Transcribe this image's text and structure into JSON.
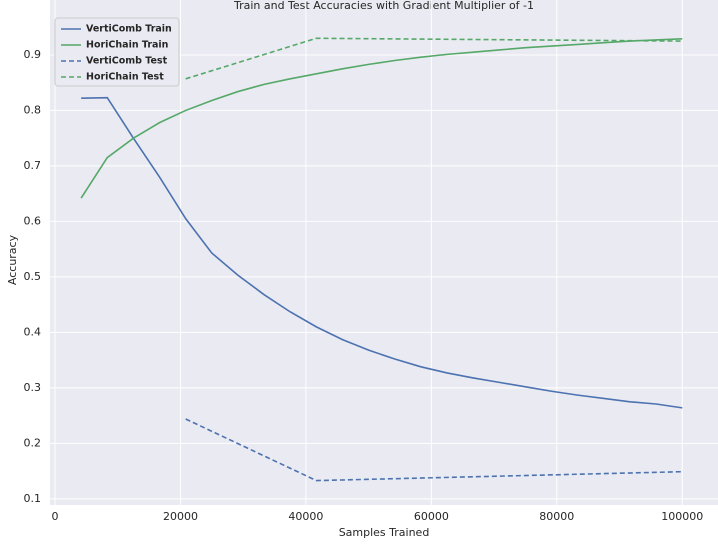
{
  "chart_data": {
    "type": "line",
    "title": "Train and Test Accuracies with Gradient Multiplier of -1",
    "x_label": "Samples Trained",
    "y_label": "Accuracy",
    "xlim": [
      -800,
      105700
    ],
    "ylim": [
      0.089,
      0.999
    ],
    "xticks": [
      0,
      20000,
      40000,
      60000,
      80000,
      100000
    ],
    "yticks": [
      0.1,
      0.2,
      0.3,
      0.4,
      0.5,
      0.6,
      0.7,
      0.8,
      0.9
    ],
    "grid": true,
    "legend": "upper left",
    "series": [
      {
        "name": "VertiComb Train",
        "color": "#4c72b0",
        "dash": false,
        "x": [
          4166,
          8333,
          12500,
          16666,
          20833,
          25000,
          29166,
          33333,
          37500,
          41666,
          45833,
          50000,
          54166,
          58333,
          62500,
          66666,
          70833,
          75000,
          79166,
          83333,
          87500,
          91666,
          95833,
          100000
        ],
        "values": [
          0.822,
          0.823,
          0.75,
          0.68,
          0.605,
          0.543,
          0.503,
          0.468,
          0.437,
          0.41,
          0.387,
          0.368,
          0.352,
          0.338,
          0.327,
          0.318,
          0.31,
          0.302,
          0.294,
          0.287,
          0.281,
          0.275,
          0.271,
          0.264
        ]
      },
      {
        "name": "HoriChain Train",
        "color": "#55a868",
        "dash": false,
        "x": [
          4166,
          8333,
          12500,
          16666,
          20833,
          25000,
          29166,
          33333,
          37500,
          41666,
          45833,
          50000,
          54166,
          58333,
          62500,
          66666,
          70833,
          75000,
          79166,
          83333,
          87500,
          91666,
          95833,
          100000
        ],
        "values": [
          0.642,
          0.715,
          0.75,
          0.778,
          0.8,
          0.818,
          0.834,
          0.847,
          0.857,
          0.866,
          0.875,
          0.883,
          0.89,
          0.896,
          0.901,
          0.905,
          0.909,
          0.913,
          0.916,
          0.919,
          0.922,
          0.925,
          0.927,
          0.929
        ]
      },
      {
        "name": "VertiComb Test",
        "color": "#4c72b0",
        "dash": true,
        "x": [
          20833,
          41666,
          100000
        ],
        "values": [
          0.244,
          0.133,
          0.149
        ]
      },
      {
        "name": "HoriChain Test",
        "color": "#55a868",
        "dash": true,
        "x": [
          20833,
          41666,
          100000
        ],
        "values": [
          0.857,
          0.93,
          0.925
        ]
      }
    ]
  }
}
